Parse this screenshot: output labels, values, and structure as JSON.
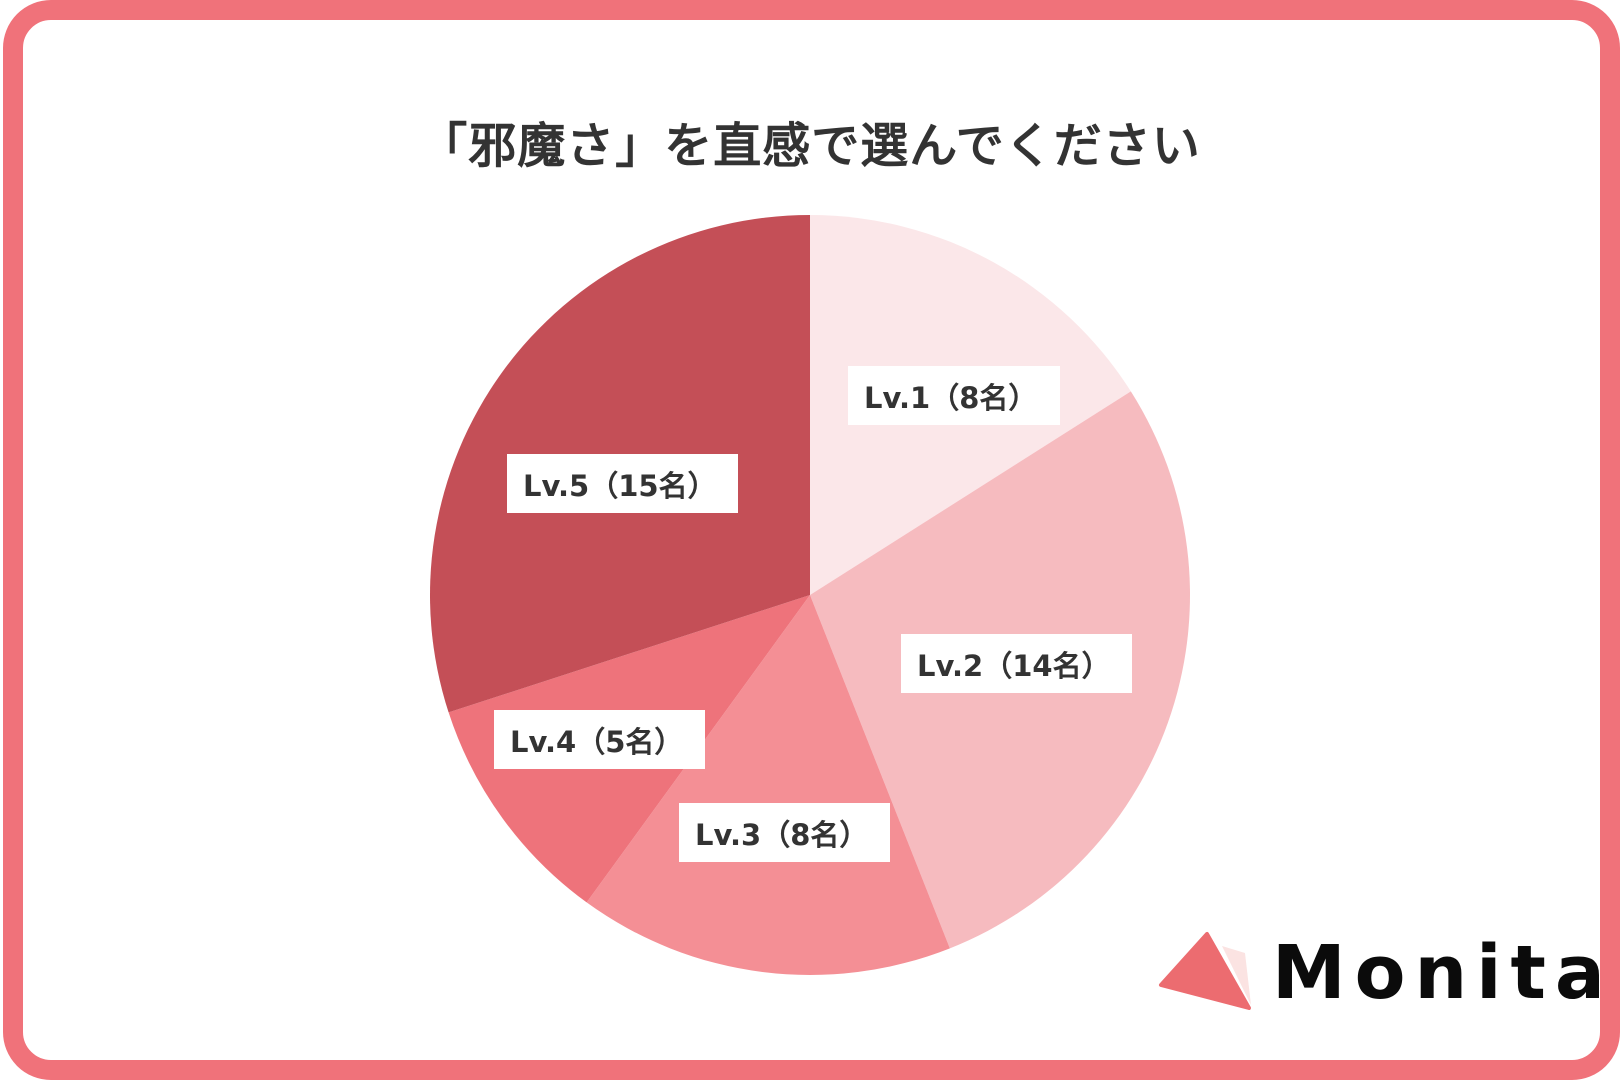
{
  "title": "「邪魔さ」を直感で選んでください",
  "chart_data": {
    "type": "pie",
    "title": "「邪魔さ」を直感で選んでください",
    "categories": [
      "Lv.1",
      "Lv.2",
      "Lv.3",
      "Lv.4",
      "Lv.5"
    ],
    "values": [
      8,
      14,
      8,
      5,
      15
    ],
    "unit": "名",
    "total": 50,
    "start_angle": "12 o'clock",
    "direction": "clockwise",
    "colors": [
      "#FBE7E9",
      "#F6BBBF",
      "#F48F95",
      "#EE737B",
      "#C44F57"
    ],
    "legend": "none (inline labels)"
  },
  "labels": [
    {
      "text": "Lv.1（8名）"
    },
    {
      "text": "Lv.2（14名）"
    },
    {
      "text": "Lv.3（8名）"
    },
    {
      "text": "Lv.4（5名）"
    },
    {
      "text": "Lv.5（15名）"
    }
  ],
  "brand": {
    "name": "Monita",
    "accent": "#F0727A",
    "logo_icon": "triangle-logo-icon"
  }
}
